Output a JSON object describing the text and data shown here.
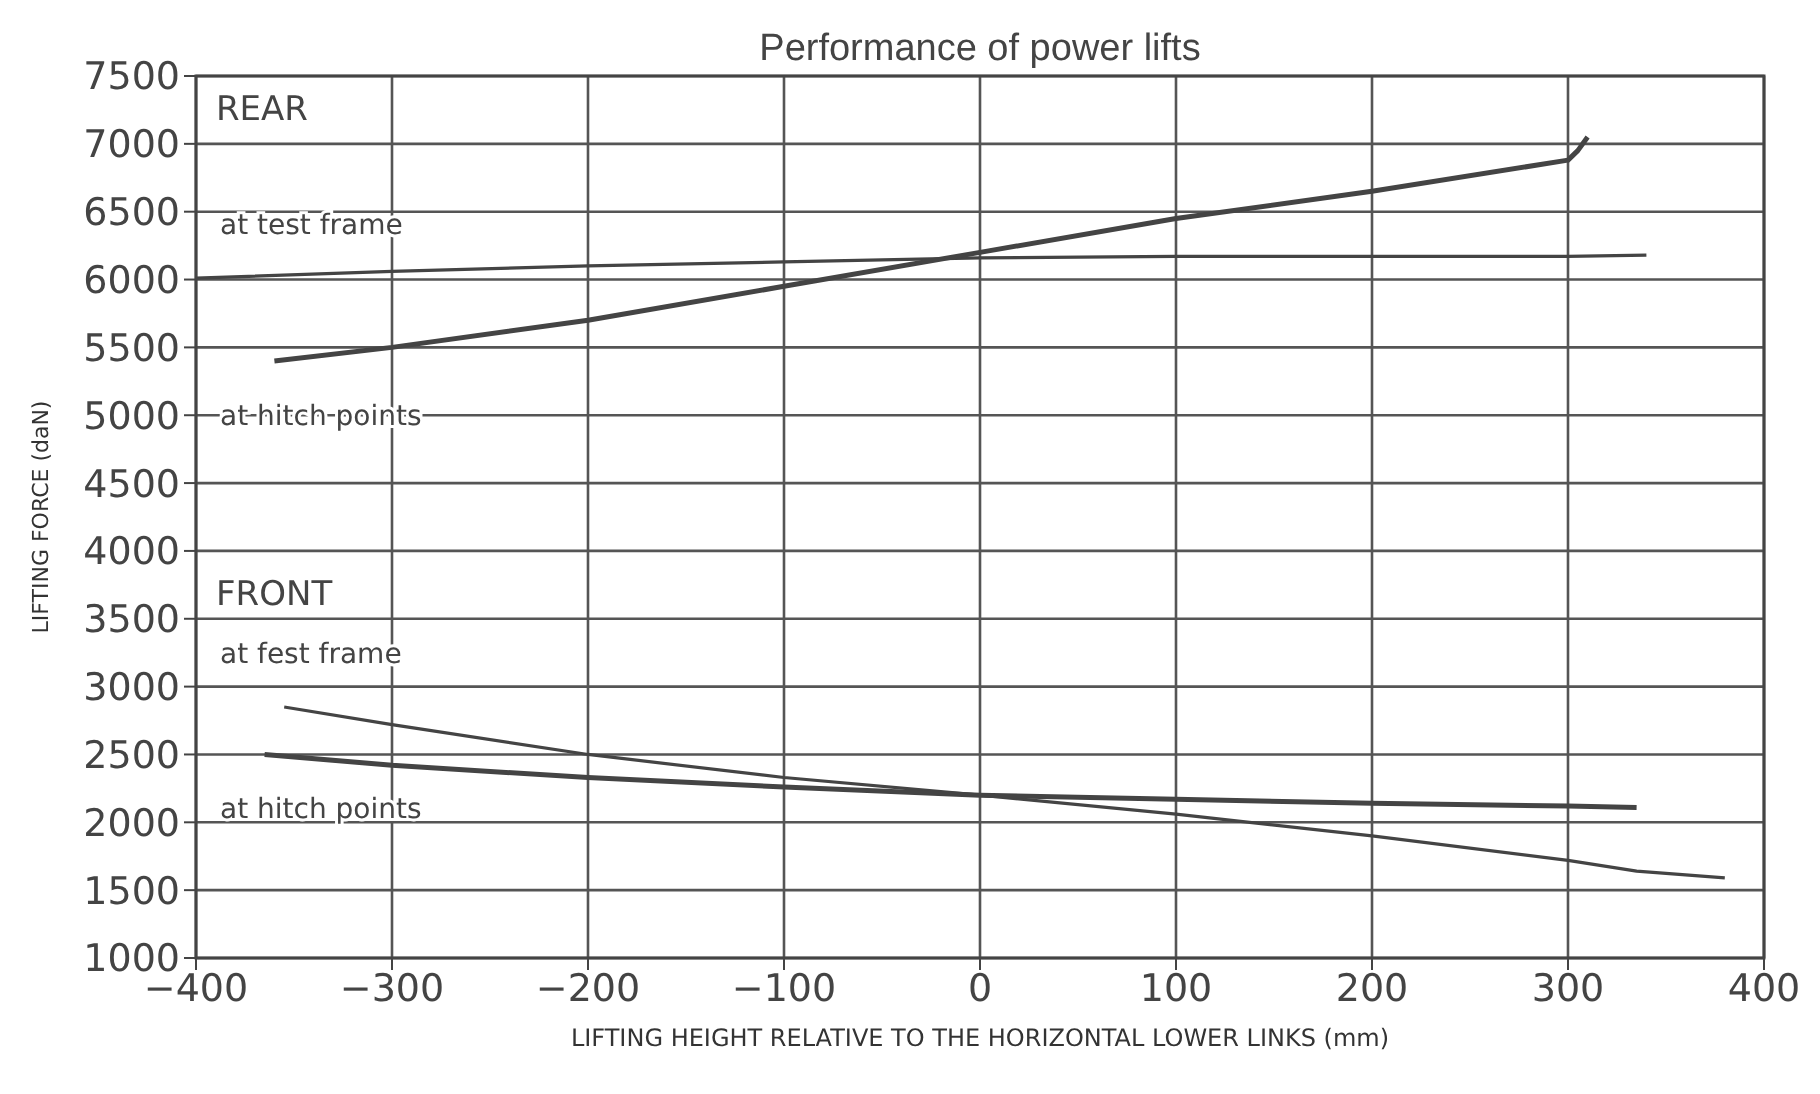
{
  "chart_data": {
    "type": "line",
    "title": "Performance of power lifts",
    "xlabel": "LIFTING HEIGHT RELATIVE TO THE HORIZONTAL LOWER LINKS (mm)",
    "ylabel": "LIFTING FORCE (daN)",
    "annotations": [
      "REAR",
      "FRONT"
    ],
    "series": [
      {
        "name": "at test frame",
        "color": "#444444",
        "x": [
          -400,
          -300,
          -200,
          -100,
          0,
          100,
          200,
          300,
          340
        ],
        "values": [
          6010,
          6060,
          6100,
          6130,
          6160,
          6170,
          6170,
          6170,
          6180
        ]
      },
      {
        "name": "at hitch points",
        "color": "#444444",
        "x": [
          -360,
          -300,
          -200,
          -100,
          0,
          100,
          200,
          300,
          305,
          310
        ],
        "values": [
          5400,
          5500,
          5700,
          5950,
          6200,
          6450,
          6650,
          6880,
          6950,
          7050
        ]
      },
      {
        "name": "at fest frame",
        "color": "#444444",
        "x": [
          -355,
          -300,
          -200,
          -100,
          0,
          100,
          200,
          300,
          335,
          380
        ],
        "values": [
          2850,
          2720,
          2500,
          2330,
          2200,
          2060,
          1900,
          1720,
          1640,
          1590
        ]
      },
      {
        "name": "at hitch points",
        "color": "#444444",
        "x": [
          -365,
          -300,
          -200,
          -100,
          0,
          100,
          200,
          300,
          335
        ],
        "values": [
          2500,
          2420,
          2330,
          2260,
          2200,
          2170,
          2140,
          2120,
          2110
        ]
      }
    ],
    "xlim": [
      -400,
      400
    ],
    "xticks": [
      -400,
      -300,
      -200,
      -100,
      0,
      100,
      200,
      300,
      400
    ],
    "ylim": [
      1000,
      7500
    ],
    "yticks": [
      1000,
      1500,
      2000,
      2500,
      3000,
      3500,
      4000,
      4500,
      5000,
      5500,
      6000,
      6500,
      7000,
      7500
    ],
    "grid": true,
    "marker": "none",
    "line_style": "solid"
  }
}
